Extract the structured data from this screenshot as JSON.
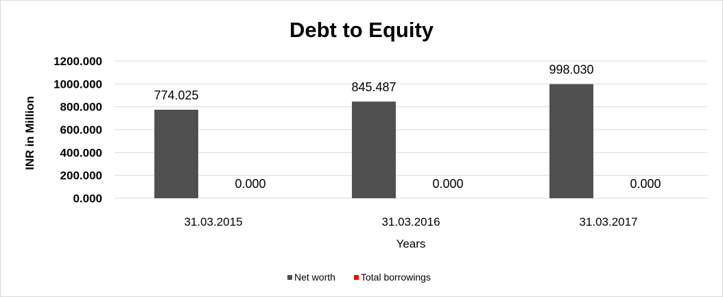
{
  "chart_data": {
    "type": "bar",
    "title": "Debt to Equity",
    "xlabel": "Years",
    "ylabel": "INR in Million",
    "categories": [
      "31.03.2015",
      "31.03.2016",
      "31.03.2017"
    ],
    "series": [
      {
        "name": "Net worth",
        "values": [
          774.025,
          845.487,
          998.03
        ],
        "labels": [
          "774.025",
          "845.487",
          "998.030"
        ],
        "color": "#505050"
      },
      {
        "name": "Total borrowings",
        "values": [
          0,
          0,
          0
        ],
        "labels": [
          "0.000",
          "0.000",
          "0.000"
        ],
        "color": "#ff0000"
      }
    ],
    "ylim": [
      0,
      1200
    ],
    "yticks": [
      0,
      200,
      400,
      600,
      800,
      1000,
      1200
    ],
    "ytick_labels": [
      "0.000",
      "200.000",
      "400.000",
      "600.000",
      "800.000",
      "1000.000",
      "1200.000"
    ],
    "grid": true,
    "legend_position": "bottom"
  }
}
